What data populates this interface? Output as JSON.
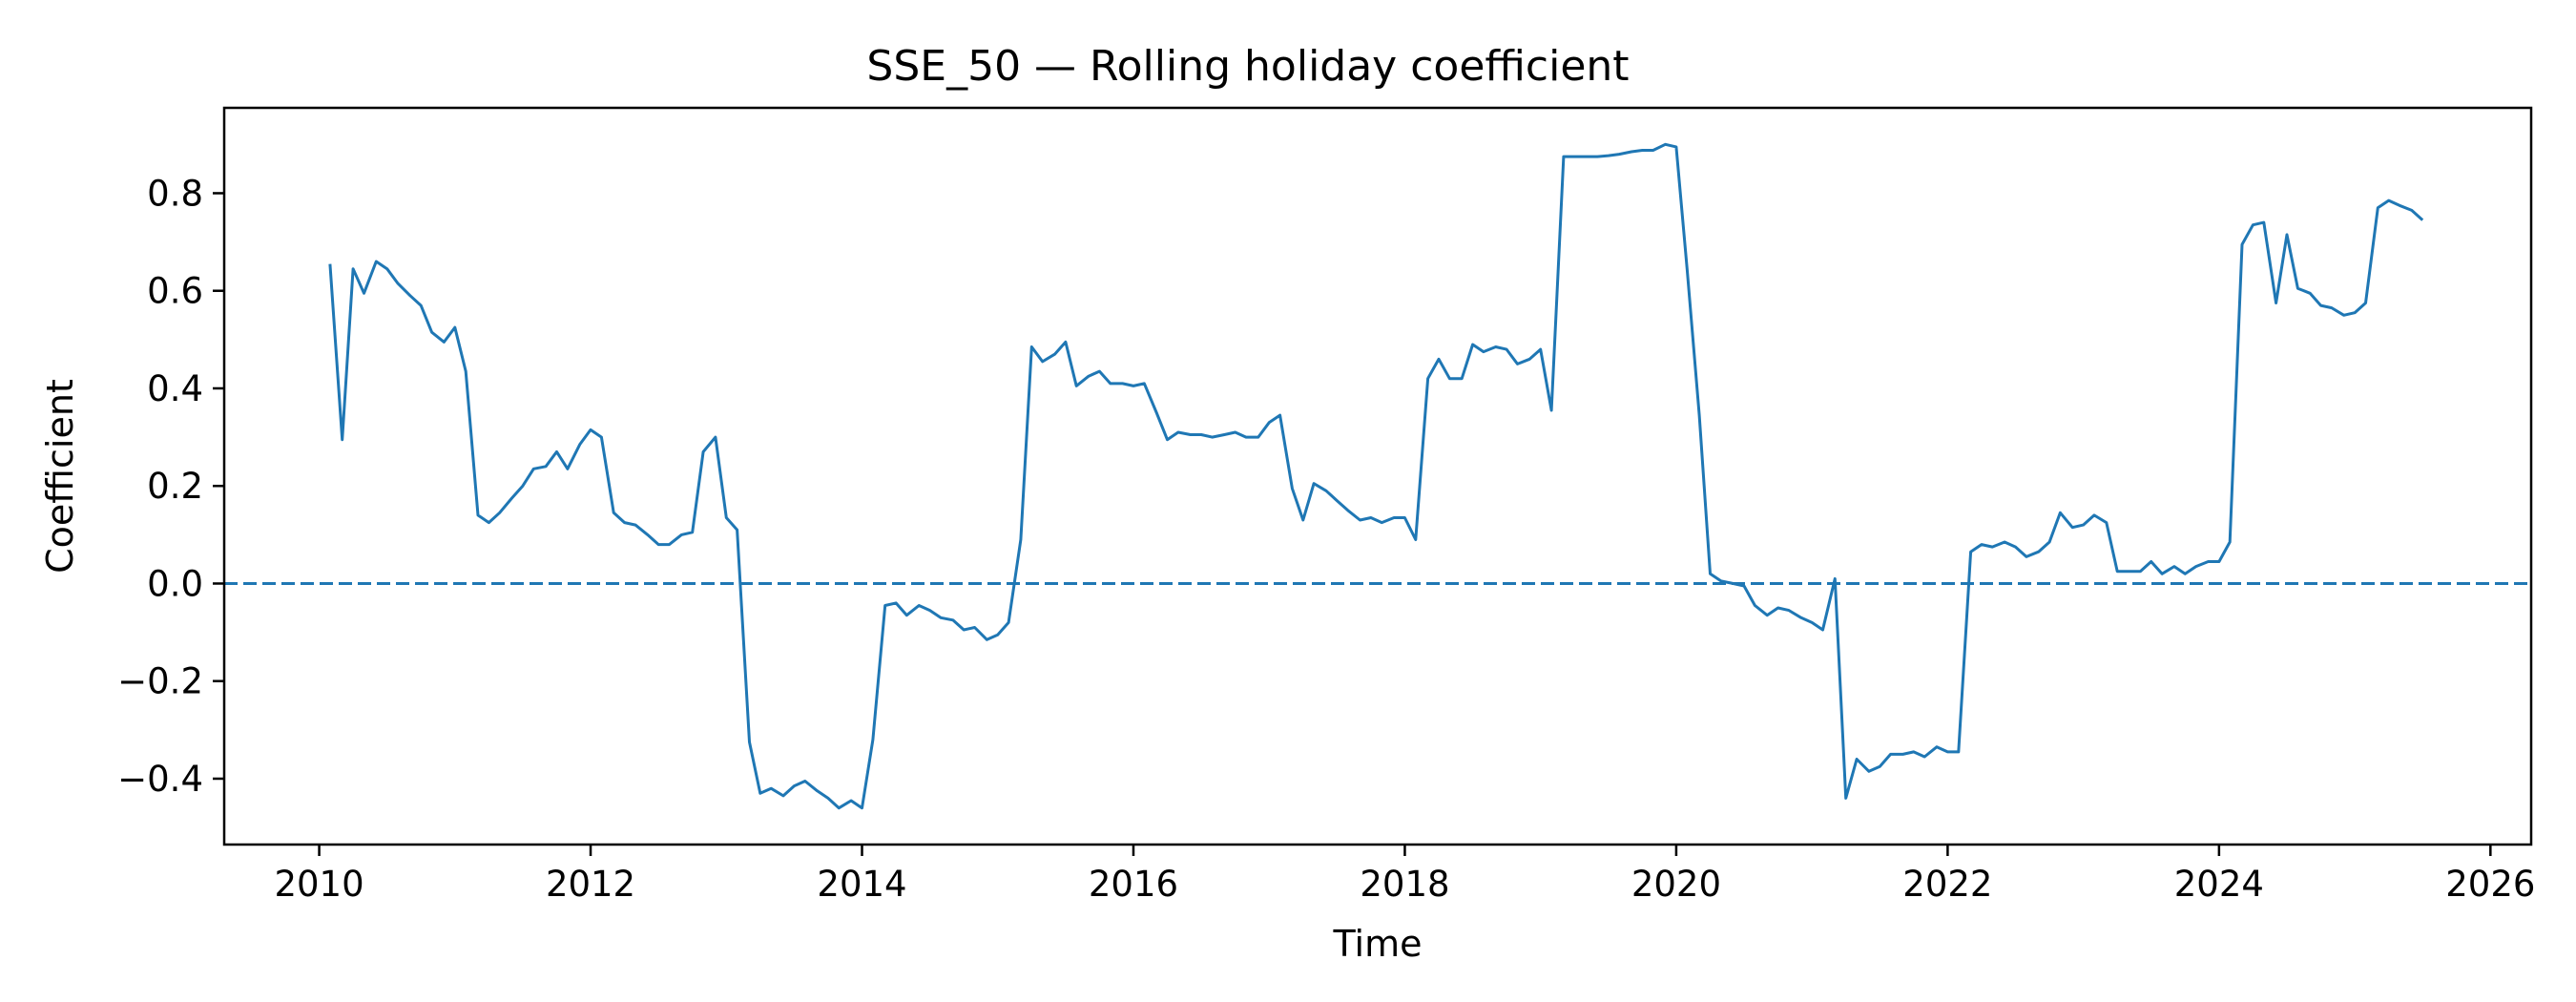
{
  "chart_data": {
    "type": "line",
    "title": "SSE_50 — Rolling holiday coefficient",
    "xlabel": "Time",
    "ylabel": "Coefficient",
    "xlim": [
      2009.3,
      2026.3
    ],
    "ylim": [
      -0.535,
      0.975
    ],
    "x_ticks": [
      2010,
      2012,
      2014,
      2016,
      2018,
      2020,
      2022,
      2024,
      2026
    ],
    "x_tick_labels": [
      "2010",
      "2012",
      "2014",
      "2016",
      "2018",
      "2020",
      "2022",
      "2024",
      "2026"
    ],
    "y_ticks": [
      -0.4,
      -0.2,
      0.0,
      0.2,
      0.4,
      0.6,
      0.8
    ],
    "y_tick_labels": [
      "−0.4",
      "−0.2",
      "0.0",
      "0.2",
      "0.4",
      "0.6",
      "0.8"
    ],
    "grid": false,
    "reference_line": {
      "y": 0.0,
      "style": "dashed",
      "color": "#1f77b4"
    },
    "series": [
      {
        "color": "#1f77b4",
        "x": [
          2010.08,
          2010.17,
          2010.25,
          2010.33,
          2010.42,
          2010.5,
          2010.58,
          2010.67,
          2010.75,
          2010.83,
          2010.92,
          2011.0,
          2011.08,
          2011.17,
          2011.25,
          2011.33,
          2011.42,
          2011.5,
          2011.58,
          2011.67,
          2011.75,
          2011.83,
          2011.92,
          2012.0,
          2012.08,
          2012.17,
          2012.25,
          2012.33,
          2012.42,
          2012.5,
          2012.58,
          2012.67,
          2012.75,
          2012.83,
          2012.92,
          2013.0,
          2013.08,
          2013.17,
          2013.25,
          2013.33,
          2013.42,
          2013.5,
          2013.58,
          2013.67,
          2013.75,
          2013.83,
          2013.92,
          2014.0,
          2014.08,
          2014.17,
          2014.25,
          2014.33,
          2014.42,
          2014.5,
          2014.58,
          2014.67,
          2014.75,
          2014.83,
          2014.92,
          2015.0,
          2015.08,
          2015.17,
          2015.25,
          2015.33,
          2015.42,
          2015.5,
          2015.58,
          2015.67,
          2015.75,
          2015.83,
          2015.92,
          2016.0,
          2016.08,
          2016.17,
          2016.25,
          2016.33,
          2016.42,
          2016.5,
          2016.58,
          2016.67,
          2016.75,
          2016.83,
          2016.92,
          2017.0,
          2017.08,
          2017.17,
          2017.25,
          2017.33,
          2017.42,
          2017.5,
          2017.58,
          2017.67,
          2017.75,
          2017.83,
          2017.92,
          2018.0,
          2018.08,
          2018.17,
          2018.25,
          2018.33,
          2018.42,
          2018.5,
          2018.58,
          2018.67,
          2018.75,
          2018.83,
          2018.92,
          2019.0,
          2019.08,
          2019.17,
          2019.25,
          2019.33,
          2019.42,
          2019.5,
          2019.58,
          2019.67,
          2019.75,
          2019.83,
          2019.92,
          2020.0,
          2020.08,
          2020.17,
          2020.25,
          2020.33,
          2020.42,
          2020.5,
          2020.58,
          2020.67,
          2020.75,
          2020.83,
          2020.92,
          2021.0,
          2021.08,
          2021.17,
          2021.25,
          2021.33,
          2021.42,
          2021.5,
          2021.58,
          2021.67,
          2021.75,
          2021.83,
          2021.92,
          2022.0,
          2022.08,
          2022.17,
          2022.25,
          2022.33,
          2022.42,
          2022.5,
          2022.58,
          2022.67,
          2022.75,
          2022.83,
          2022.92,
          2023.0,
          2023.08,
          2023.17,
          2023.25,
          2023.33,
          2023.42,
          2023.5,
          2023.58,
          2023.67,
          2023.75,
          2023.83,
          2023.92,
          2024.0,
          2024.08,
          2024.17,
          2024.25,
          2024.33,
          2024.42,
          2024.5,
          2024.58,
          2024.67,
          2024.75,
          2024.83,
          2024.92,
          2025.0,
          2025.08,
          2025.17,
          2025.25,
          2025.33,
          2025.42,
          2025.5
        ],
        "y": [
          0.655,
          0.295,
          0.645,
          0.595,
          0.66,
          0.645,
          0.615,
          0.59,
          0.57,
          0.515,
          0.495,
          0.525,
          0.435,
          0.14,
          0.125,
          0.145,
          0.175,
          0.2,
          0.235,
          0.24,
          0.27,
          0.235,
          0.285,
          0.315,
          0.3,
          0.145,
          0.125,
          0.12,
          0.1,
          0.08,
          0.08,
          0.1,
          0.105,
          0.27,
          0.3,
          0.135,
          0.11,
          -0.325,
          -0.43,
          -0.42,
          -0.435,
          -0.415,
          -0.405,
          -0.425,
          -0.44,
          -0.46,
          -0.445,
          -0.46,
          -0.32,
          -0.045,
          -0.04,
          -0.065,
          -0.045,
          -0.055,
          -0.07,
          -0.075,
          -0.095,
          -0.09,
          -0.115,
          -0.105,
          -0.08,
          0.09,
          0.485,
          0.455,
          0.47,
          0.495,
          0.405,
          0.425,
          0.435,
          0.41,
          0.41,
          0.405,
          0.41,
          0.35,
          0.295,
          0.31,
          0.305,
          0.305,
          0.3,
          0.305,
          0.31,
          0.3,
          0.3,
          0.33,
          0.345,
          0.195,
          0.13,
          0.205,
          0.19,
          0.17,
          0.15,
          0.13,
          0.135,
          0.125,
          0.135,
          0.135,
          0.09,
          0.42,
          0.46,
          0.42,
          0.42,
          0.49,
          0.475,
          0.485,
          0.48,
          0.45,
          0.46,
          0.48,
          0.355,
          0.875,
          0.875,
          0.875,
          0.875,
          0.877,
          0.88,
          0.885,
          0.888,
          0.888,
          0.9,
          0.895,
          0.645,
          0.345,
          0.02,
          0.005,
          0.0,
          -0.005,
          -0.045,
          -0.065,
          -0.05,
          -0.055,
          -0.07,
          -0.08,
          -0.095,
          0.01,
          -0.44,
          -0.36,
          -0.385,
          -0.375,
          -0.35,
          -0.35,
          -0.345,
          -0.355,
          -0.335,
          -0.345,
          -0.345,
          0.065,
          0.08,
          0.075,
          0.085,
          0.075,
          0.055,
          0.065,
          0.085,
          0.145,
          0.115,
          0.12,
          0.14,
          0.125,
          0.025,
          0.025,
          0.025,
          0.045,
          0.02,
          0.035,
          0.02,
          0.035,
          0.045,
          0.045,
          0.085,
          0.695,
          0.735,
          0.74,
          0.575,
          0.715,
          0.605,
          0.595,
          0.57,
          0.565,
          0.55,
          0.555,
          0.575,
          0.77,
          0.785,
          0.775,
          0.765,
          0.745
        ]
      }
    ]
  }
}
